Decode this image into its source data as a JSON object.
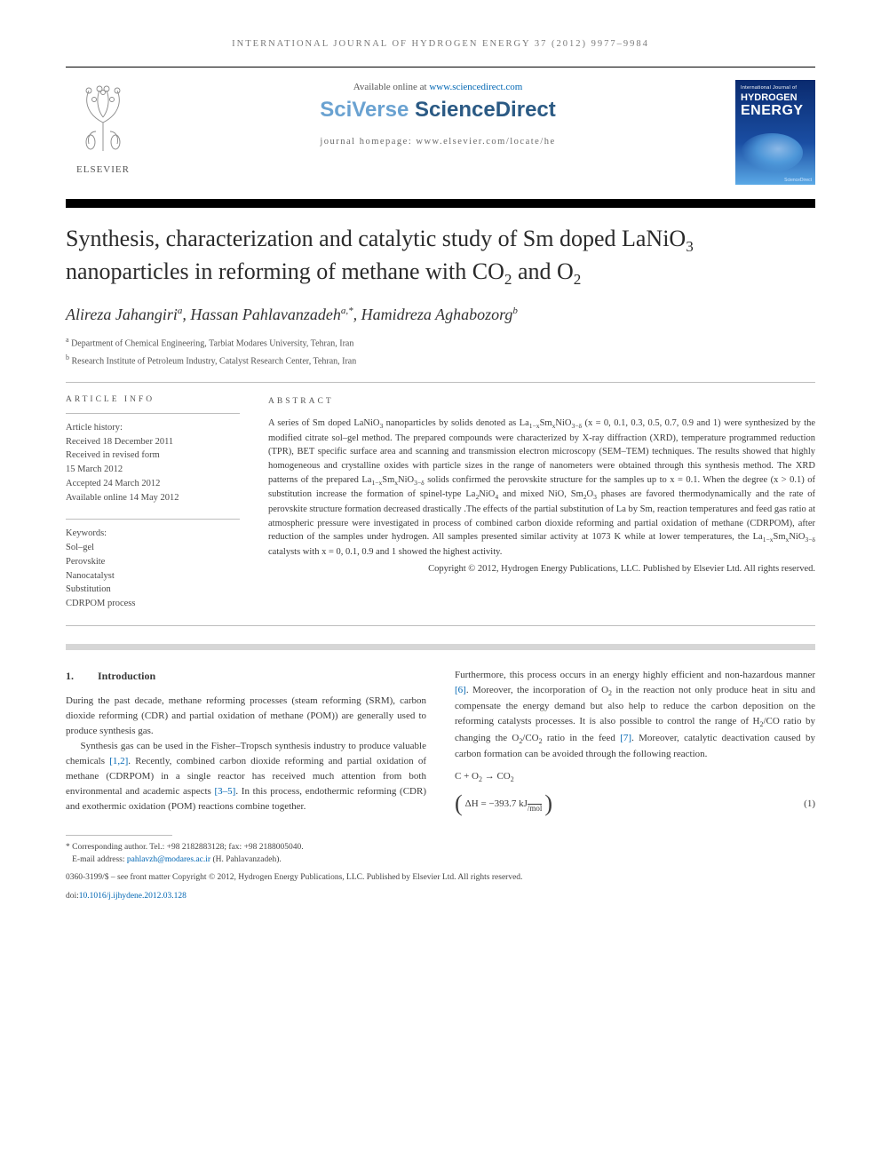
{
  "running_head": "INTERNATIONAL JOURNAL OF HYDROGEN ENERGY 37 (2012) 9977–9984",
  "header": {
    "available": "Available online at ",
    "available_link": "www.sciencedirect.com",
    "sciverse_a": "SciVerse ",
    "sciverse_b": "ScienceDirect",
    "homepage": "journal homepage: www.elsevier.com/locate/he",
    "elsevier": "ELSEVIER",
    "cover": {
      "line1": "International Journal of",
      "line2": "HYDROGEN",
      "line3": "ENERGY",
      "sd": "ScienceDirect"
    }
  },
  "title_html": "Synthesis, characterization and catalytic study of Sm doped LaNiO<sub>3</sub> nanoparticles in reforming of methane with CO<sub>2</sub> and O<sub>2</sub>",
  "authors_html": "Alireza Jahangiri<sup>a</sup>, Hassan Pahlavanzadeh<sup>a,*</sup>, Hamidreza Aghabozorg<sup>b</sup>",
  "affiliations": [
    {
      "sup": "a",
      "text": "Department of Chemical Engineering, Tarbiat Modares University, Tehran, Iran"
    },
    {
      "sup": "b",
      "text": "Research Institute of Petroleum Industry, Catalyst Research Center, Tehran, Iran"
    }
  ],
  "article_info": {
    "head": "ARTICLE INFO",
    "history_label": "Article history:",
    "history": [
      "Received 18 December 2011",
      "Received in revised form",
      "15 March 2012",
      "Accepted 24 March 2012",
      "Available online 14 May 2012"
    ],
    "keywords_label": "Keywords:",
    "keywords": [
      "Sol–gel",
      "Perovskite",
      "Nanocatalyst",
      "Substitution",
      "CDRPOM process"
    ]
  },
  "abstract": {
    "head": "ABSTRACT",
    "text_html": "A series of Sm doped LaNiO<sub>3</sub> nanoparticles by solids denoted as La<sub>1−x</sub>Sm<sub>x</sub>NiO<sub>3−δ</sub> (x = 0, 0.1, 0.3, 0.5, 0.7, 0.9 and 1) were synthesized by the modified citrate sol–gel method. The prepared compounds were characterized by X-ray diffraction (XRD), temperature programmed reduction (TPR), BET specific surface area and scanning and transmission electron microscopy (SEM–TEM) techniques. The results showed that highly homogeneous and crystalline oxides with particle sizes in the range of nanometers were obtained through this synthesis method. The XRD patterns of the prepared La<sub>1−x</sub>Sm<sub>x</sub>NiO<sub>3−δ</sub> solids confirmed the perovskite structure for the samples up to x = 0.1. When the degree (x &gt; 0.1) of substitution increase the formation of spinel-type La<sub>2</sub>NiO<sub>4</sub> and mixed NiO, Sm<sub>2</sub>O<sub>3</sub> phases are favored thermodynamically and the rate of perovskite structure formation decreased drastically .The effects of the partial substitution of La by Sm, reaction temperatures and feed gas ratio at atmospheric pressure were investigated in process of combined carbon dioxide reforming and partial oxidation of methane (CDRPOM), after reduction of the samples under hydrogen. All samples presented similar activity at 1073 K while at lower temperatures, the La<sub>1−x</sub>Sm<sub>x</sub>NiO<sub>3−δ</sub> catalysts with x = 0, 0.1, 0.9 and 1 showed the highest activity.",
    "copyright": "Copyright © 2012, Hydrogen Energy Publications, LLC. Published by Elsevier Ltd. All rights reserved."
  },
  "body": {
    "section_num": "1.",
    "section_title": "Introduction",
    "p1": "During the past decade, methane reforming processes (steam reforming (SRM), carbon dioxide reforming (CDR) and partial oxidation of methane (POM)) are generally used to produce synthesis gas.",
    "p2_html": "Synthesis gas can be used in the Fisher–Tropsch synthesis industry to produce valuable chemicals <span class=\"ref\">[1,2]</span>. Recently, combined carbon dioxide reforming and partial oxidation of methane (CDRPOM) in a single reactor has received much attention from both environmental and academic aspects <span class=\"ref\">[3–5]</span>. In this process, endothermic reforming (CDR) and exothermic oxidation (POM) reactions combine together.",
    "p3_html": "Furthermore, this process occurs in an energy highly efficient and non-hazardous manner <span class=\"ref\">[6]</span>. Moreover, the incorporation of O<sub>2</sub> in the reaction not only produce heat in situ and compensate the energy demand but also help to reduce the carbon deposition on the reforming catalysts processes. It is also possible to control the range of H<sub>2</sub>/CO ratio by changing the O<sub>2</sub>/CO<sub>2</sub> ratio in the feed <span class=\"ref\">[7]</span>. Moreover, catalytic deactivation caused by carbon formation can be avoided through the following reaction.",
    "eq_reaction_html": "C + O<sub>2</sub> → CO<sub>2</sub>",
    "eq_dh_html": "ΔH = −393.7 kJ",
    "eq_dh_unit": "/mol",
    "eq_num": "(1)"
  },
  "footnotes": {
    "corr": "* Corresponding author. Tel.: +98 2182883128; fax: +98 2188005040.",
    "email_label": "E-mail address: ",
    "email": "pahlavzh@modares.ac.ir",
    "email_tail": " (H. Pahlavanzadeh).",
    "issn": "0360-3199/$ – see front matter Copyright © 2012, Hydrogen Energy Publications, LLC. Published by Elsevier Ltd. All rights reserved.",
    "doi_label": "doi:",
    "doi": "10.1016/j.ijhydene.2012.03.128"
  },
  "colors": {
    "link": "#0066b3",
    "text": "#3a3a3a",
    "grey_bar": "#d6d6d6"
  }
}
